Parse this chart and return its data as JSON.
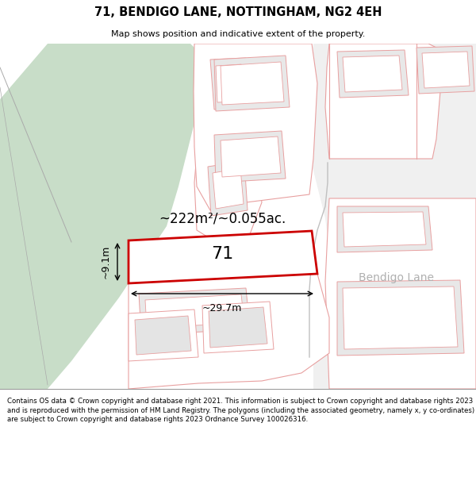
{
  "title_line1": "71, BENDIGO LANE, NOTTINGHAM, NG2 4EH",
  "title_line2": "Map shows position and indicative extent of the property.",
  "footer_text": "Contains OS data © Crown copyright and database right 2021. This information is subject to Crown copyright and database rights 2023 and is reproduced with the permission of HM Land Registry. The polygons (including the associated geometry, namely x, y co-ordinates) are subject to Crown copyright and database rights 2023 Ordnance Survey 100026316.",
  "area_label": "~222m²/~0.055ac.",
  "property_number": "71",
  "width_label": "~29.7m",
  "height_label": "~9.1m",
  "street_label": "Bendigo Lane",
  "bg_color": "#ffffff",
  "green_fill": "#c8ddc8",
  "prop_edge": "#cc0000",
  "other_edge_light": "#e8a0a0",
  "other_edge_mid": "#d08080",
  "gray_edge": "#c0c0c0",
  "road_label_color": "#b0b0b0"
}
